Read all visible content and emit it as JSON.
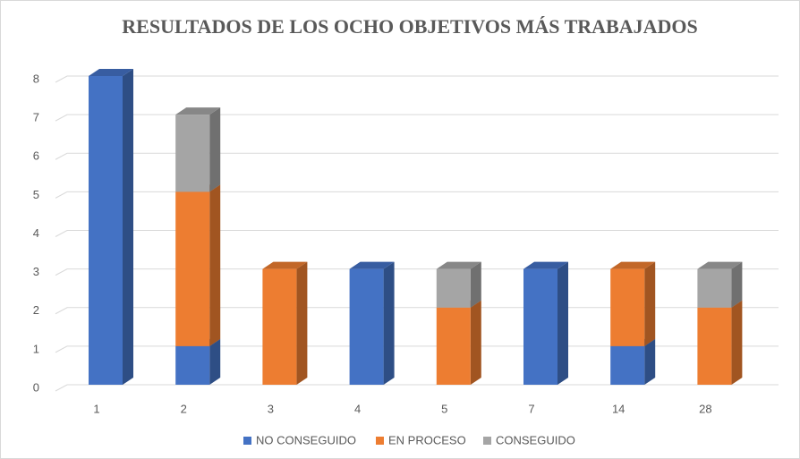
{
  "chart_data": {
    "type": "bar3d_stacked",
    "title": "RESULTADOS DE LOS OCHO OBJETIVOS MÁS TRABAJADOS",
    "categories": [
      "1",
      "2",
      "3",
      "4",
      "5",
      "7",
      "14",
      "28"
    ],
    "series": [
      {
        "name": "NO CONSEGUIDO",
        "color": "#4472c4",
        "values": [
          8,
          1,
          0,
          3,
          0,
          3,
          1,
          0
        ]
      },
      {
        "name": "EN PROCESO",
        "color": "#ed7d31",
        "values": [
          0,
          4,
          3,
          0,
          2,
          0,
          2,
          2
        ]
      },
      {
        "name": "CONSEGUIDO",
        "color": "#a5a5a5",
        "values": [
          0,
          2,
          0,
          0,
          1,
          0,
          0,
          1
        ]
      }
    ],
    "ylim": [
      0,
      8
    ],
    "yticks": [
      0,
      1,
      2,
      3,
      4,
      5,
      6,
      7,
      8
    ],
    "grid": true,
    "legend": "bottom"
  }
}
